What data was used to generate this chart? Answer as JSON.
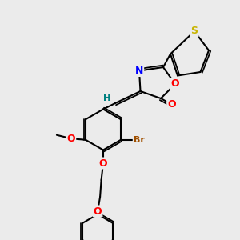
{
  "bg_color": "#ebebeb",
  "bond_color": "#000000",
  "atom_colors": {
    "S": "#c8b400",
    "N": "#0000ff",
    "O": "#ff0000",
    "Br": "#a05000",
    "H": "#008080",
    "C": "#000000"
  },
  "bond_width": 1.5,
  "figsize": [
    3.0,
    3.0
  ],
  "dpi": 100
}
